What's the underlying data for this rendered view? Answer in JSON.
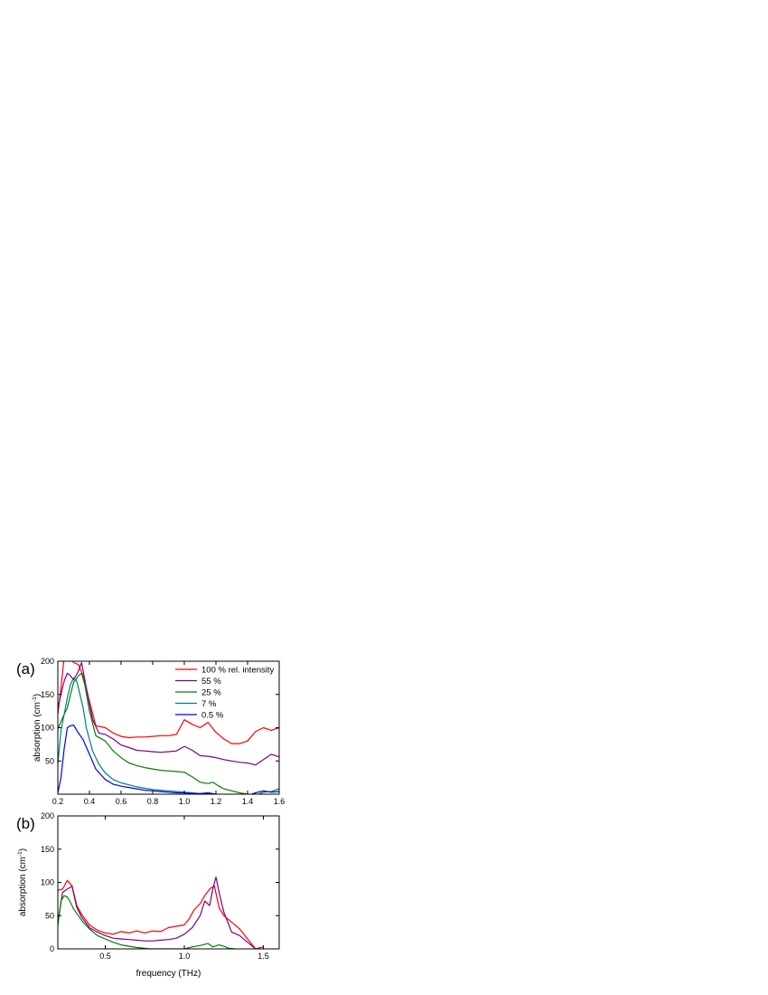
{
  "chart_data": [
    {
      "type": "line",
      "panel_label": "(a)",
      "ylabel": "absorption (cm",
      "ylabel_sup": "-1",
      "ylabel_close": ")",
      "xlabel": "",
      "xlim": [
        0.2,
        1.6
      ],
      "ylim": [
        0,
        200
      ],
      "x_ticks": [
        "0.2",
        "0.4",
        "0.6",
        "0.8",
        "1.0",
        "1.2",
        "1.4",
        "1.6"
      ],
      "y_ticks": [
        "50",
        "100",
        "150",
        "200"
      ],
      "legend_position": "top-right",
      "series": [
        {
          "name": "100 % rel. intensity",
          "color": "#ff0000",
          "x": [
            0.2,
            0.22,
            0.24,
            0.26,
            0.28,
            0.3,
            0.33,
            0.36,
            0.4,
            0.44,
            0.5,
            0.55,
            0.6,
            0.65,
            0.7,
            0.75,
            0.8,
            0.85,
            0.9,
            0.95,
            1.0,
            1.05,
            1.1,
            1.15,
            1.2,
            1.25,
            1.3,
            1.35,
            1.4,
            1.45,
            1.5,
            1.55,
            1.6
          ],
          "y": [
            120,
            160,
            205,
            210,
            205,
            198,
            195,
            178,
            140,
            103,
            100,
            92,
            87,
            85,
            86,
            86,
            87,
            88,
            88,
            90,
            112,
            105,
            100,
            108,
            93,
            83,
            76,
            76,
            80,
            94,
            100,
            96,
            100
          ]
        },
        {
          "name": "55 %",
          "color": "#800080",
          "x": [
            0.2,
            0.22,
            0.24,
            0.26,
            0.28,
            0.3,
            0.33,
            0.35,
            0.38,
            0.42,
            0.46,
            0.5,
            0.55,
            0.6,
            0.65,
            0.7,
            0.75,
            0.8,
            0.85,
            0.9,
            0.95,
            1.0,
            1.05,
            1.1,
            1.15,
            1.2,
            1.25,
            1.3,
            1.35,
            1.4,
            1.45,
            1.5,
            1.55,
            1.6
          ],
          "y": [
            130,
            150,
            170,
            182,
            178,
            172,
            185,
            198,
            160,
            112,
            92,
            90,
            83,
            74,
            70,
            66,
            65,
            64,
            63,
            64,
            65,
            72,
            66,
            58,
            57,
            55,
            52,
            50,
            48,
            47,
            44,
            52,
            60,
            56
          ]
        },
        {
          "name": "25 %",
          "color": "#008000",
          "x": [
            0.2,
            0.23,
            0.26,
            0.28,
            0.3,
            0.33,
            0.35,
            0.37,
            0.4,
            0.44,
            0.5,
            0.55,
            0.6,
            0.65,
            0.7,
            0.75,
            0.8,
            0.85,
            0.9,
            0.95,
            1.0,
            1.05,
            1.1,
            1.15,
            1.18,
            1.22,
            1.25,
            1.3,
            1.35,
            1.4,
            1.45,
            1.5,
            1.55,
            1.6
          ],
          "y": [
            98,
            115,
            130,
            150,
            168,
            178,
            182,
            165,
            125,
            88,
            80,
            65,
            55,
            47,
            43,
            40,
            38,
            36,
            35,
            34,
            33,
            26,
            18,
            16,
            18,
            12,
            8,
            5,
            2,
            0,
            -2,
            3,
            4,
            8
          ]
        },
        {
          "name": "7 %",
          "color": "#008080",
          "x": [
            0.2,
            0.22,
            0.24,
            0.26,
            0.28,
            0.3,
            0.32,
            0.34,
            0.36,
            0.38,
            0.42,
            0.46,
            0.5,
            0.55,
            0.6,
            0.65,
            0.7,
            0.75,
            0.8,
            0.85,
            0.9,
            0.95,
            1.0,
            1.05,
            1.1,
            1.15,
            1.2
          ],
          "y": [
            45,
            95,
            120,
            145,
            165,
            175,
            170,
            150,
            130,
            100,
            65,
            45,
            32,
            22,
            17,
            14,
            11,
            9,
            7,
            6,
            5,
            4,
            3,
            2,
            1,
            1,
            0
          ]
        },
        {
          "name": "0.5 %",
          "color": "#0000ff",
          "x": [
            0.2,
            0.22,
            0.24,
            0.26,
            0.28,
            0.3,
            0.33,
            0.36,
            0.4,
            0.44,
            0.5,
            0.55,
            0.6,
            0.65,
            0.7,
            0.75,
            0.8,
            0.85,
            0.9,
            0.95,
            1.0,
            1.05,
            1.1,
            1.15,
            1.2,
            1.4,
            1.45,
            1.5,
            1.55,
            1.6
          ],
          "y": [
            2,
            25,
            68,
            100,
            103,
            104,
            92,
            82,
            60,
            38,
            22,
            15,
            12,
            10,
            8,
            6,
            5,
            4,
            3,
            2,
            2,
            1,
            1,
            2,
            0,
            -2,
            2,
            5,
            3,
            4
          ]
        }
      ]
    },
    {
      "type": "line",
      "panel_label": "(b)",
      "ylabel": "absorption (cm",
      "ylabel_sup": "-1",
      "ylabel_close": ")",
      "xlabel": "frequency (THz)",
      "xlim": [
        0.2,
        1.6
      ],
      "ylim": [
        0,
        200
      ],
      "x_ticks": [
        "0.5",
        "1.0",
        "1.5"
      ],
      "y_ticks": [
        "0",
        "50",
        "100",
        "150",
        "200"
      ],
      "series": [
        {
          "color": "#ff0000",
          "x": [
            0.2,
            0.23,
            0.26,
            0.29,
            0.32,
            0.35,
            0.4,
            0.45,
            0.5,
            0.55,
            0.6,
            0.65,
            0.7,
            0.75,
            0.8,
            0.85,
            0.9,
            0.95,
            1.0,
            1.03,
            1.06,
            1.1,
            1.13,
            1.16,
            1.19,
            1.22,
            1.25,
            1.3,
            1.35,
            1.4,
            1.45,
            1.5
          ],
          "y": [
            88,
            90,
            103,
            95,
            65,
            52,
            36,
            28,
            24,
            22,
            26,
            24,
            27,
            24,
            27,
            26,
            32,
            34,
            36,
            45,
            58,
            68,
            80,
            90,
            95,
            62,
            50,
            40,
            30,
            15,
            0,
            3
          ]
        },
        {
          "color": "#800080",
          "x": [
            0.2,
            0.23,
            0.26,
            0.29,
            0.32,
            0.35,
            0.4,
            0.45,
            0.5,
            0.55,
            0.6,
            0.65,
            0.7,
            0.75,
            0.8,
            0.85,
            0.9,
            0.95,
            1.0,
            1.05,
            1.1,
            1.13,
            1.16,
            1.18,
            1.2,
            1.22,
            1.25,
            1.3,
            1.35,
            1.4,
            1.45
          ],
          "y": [
            40,
            85,
            90,
            94,
            62,
            48,
            32,
            25,
            20,
            16,
            15,
            14,
            13,
            12,
            12,
            13,
            14,
            16,
            22,
            32,
            50,
            72,
            65,
            90,
            108,
            85,
            55,
            25,
            20,
            10,
            0
          ]
        },
        {
          "color": "#008000",
          "x": [
            0.2,
            0.22,
            0.24,
            0.26,
            0.28,
            0.3,
            0.33,
            0.36,
            0.4,
            0.45,
            0.5,
            0.55,
            0.6,
            0.65,
            0.7,
            0.75,
            0.78,
            1.0,
            1.05,
            1.1,
            1.15,
            1.18,
            1.22,
            1.25,
            1.28,
            1.32
          ],
          "y": [
            35,
            72,
            80,
            78,
            70,
            60,
            50,
            40,
            30,
            20,
            15,
            10,
            6,
            4,
            2,
            1,
            0,
            0,
            3,
            5,
            8,
            3,
            6,
            4,
            1,
            0
          ]
        }
      ]
    }
  ]
}
